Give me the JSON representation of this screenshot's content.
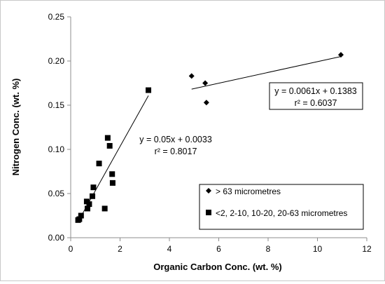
{
  "chart_data": {
    "type": "scatter",
    "xlabel": "Organic Carbon Conc. (wt. %)",
    "ylabel": "Nitrogen Conc. (wt. %)",
    "xlim": [
      0,
      12
    ],
    "ylim": [
      0,
      0.25
    ],
    "x_ticks": [
      "0",
      "2",
      "4",
      "6",
      "8",
      "10",
      "12"
    ],
    "y_ticks": [
      "0.00",
      "0.05",
      "0.10",
      "0.15",
      "0.20",
      "0.25"
    ],
    "grid": false,
    "legend_position": "bottom-right",
    "series": [
      {
        "name": "> 63 micrometres",
        "marker": "diamond",
        "color": "#000000",
        "points": [
          {
            "x": 4.9,
            "y": 0.183
          },
          {
            "x": 5.45,
            "y": 0.175
          },
          {
            "x": 5.5,
            "y": 0.153
          },
          {
            "x": 10.95,
            "y": 0.207
          }
        ],
        "trendline": {
          "x_range": [
            4.9,
            10.95
          ],
          "equation": "y = 0.0061x + 0.1383",
          "r2": "r² = 0.6037"
        }
      },
      {
        "name": "<2, 2-10, 10-20, 20-63 micrometres",
        "marker": "square",
        "color": "#000000",
        "points": [
          {
            "x": 0.3,
            "y": 0.02
          },
          {
            "x": 0.35,
            "y": 0.021
          },
          {
            "x": 0.42,
            "y": 0.025
          },
          {
            "x": 0.65,
            "y": 0.041
          },
          {
            "x": 0.68,
            "y": 0.033
          },
          {
            "x": 0.75,
            "y": 0.038
          },
          {
            "x": 0.88,
            "y": 0.047
          },
          {
            "x": 0.92,
            "y": 0.057
          },
          {
            "x": 1.15,
            "y": 0.084
          },
          {
            "x": 1.38,
            "y": 0.033
          },
          {
            "x": 1.5,
            "y": 0.113
          },
          {
            "x": 1.58,
            "y": 0.104
          },
          {
            "x": 1.68,
            "y": 0.072
          },
          {
            "x": 1.7,
            "y": 0.062
          },
          {
            "x": 3.15,
            "y": 0.167
          }
        ],
        "trendline": {
          "x_range": [
            0.3,
            3.15
          ],
          "equation": "y = 0.05x + 0.0033",
          "r2": "r² = 0.8017"
        }
      }
    ]
  }
}
